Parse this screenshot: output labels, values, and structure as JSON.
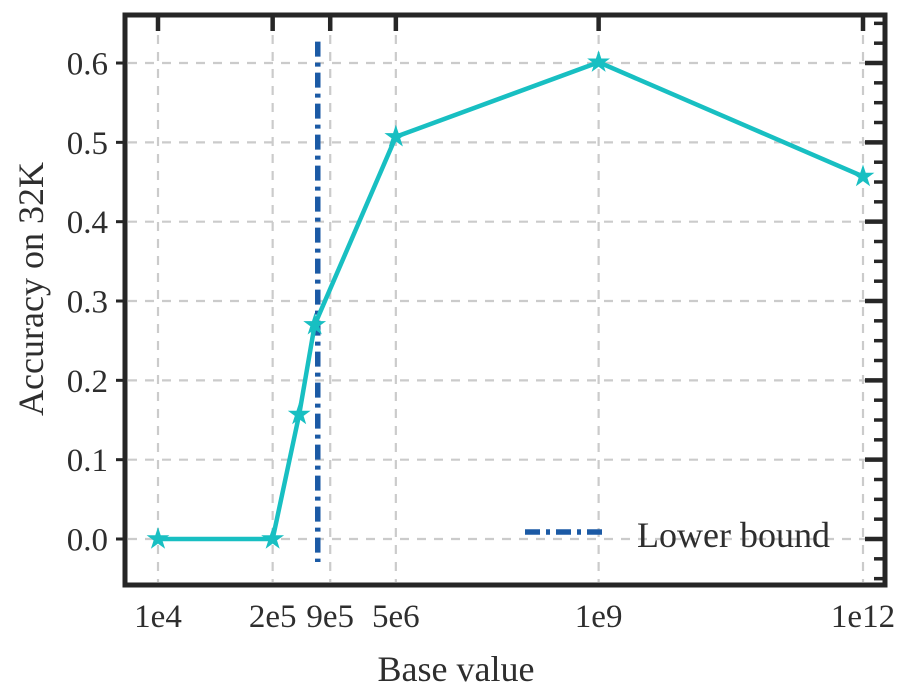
{
  "chart_data": {
    "type": "line",
    "title": "",
    "xlabel": "Base value",
    "ylabel": "Accuracy on 32K",
    "x_scale": "log",
    "grid": {
      "show": true,
      "style": "dashed",
      "color": "#cbcbcb"
    },
    "spine_color": "#262626",
    "text_color": "#2e2e2e",
    "x_axis": {
      "label": "Base value",
      "ticks": [
        {
          "label": "1e4",
          "value": 10000
        },
        {
          "label": "2e5",
          "value": 200000
        },
        {
          "label": "9e5",
          "value": 900000
        },
        {
          "label": "5e6",
          "value": 5000000
        },
        {
          "label": "1e9",
          "value": 1000000000
        },
        {
          "label": "1e12",
          "value": 1000000000000
        }
      ]
    },
    "y_axis": {
      "label": "Accuracy on 32K",
      "ticks": [
        {
          "label": "0.0",
          "value": 0.0
        },
        {
          "label": "0.1",
          "value": 0.1
        },
        {
          "label": "0.2",
          "value": 0.2
        },
        {
          "label": "0.3",
          "value": 0.3
        },
        {
          "label": "0.4",
          "value": 0.4
        },
        {
          "label": "0.5",
          "value": 0.5
        },
        {
          "label": "0.6",
          "value": 0.6
        },
        {
          "label": "0.0",
          "value": 0.0
        }
      ],
      "minor_step": 0.025
    },
    "series": [
      {
        "name": "Accuracy on 32K",
        "color": "#18bfc2",
        "marker": "star",
        "points": [
          {
            "x": 10000,
            "y": 0.0
          },
          {
            "x": 200000,
            "y": 0.0
          },
          {
            "x": 400000,
            "y": 0.157
          },
          {
            "x": 600000,
            "y": 0.27
          },
          {
            "x": 5000000,
            "y": 0.507
          },
          {
            "x": 1000000000,
            "y": 0.601
          },
          {
            "x": 1000000000000,
            "y": 0.457
          }
        ]
      }
    ],
    "lower_bound": {
      "label": "Lower bound",
      "x": 650000,
      "color": "#1b5aa5",
      "line_style": "dashdot",
      "y_span": [
        -0.029,
        0.627
      ]
    },
    "legend": {
      "position": "lower-right",
      "entries": [
        {
          "label": "Lower bound",
          "color": "#1b5aa5",
          "style": "dashdot"
        }
      ]
    }
  }
}
